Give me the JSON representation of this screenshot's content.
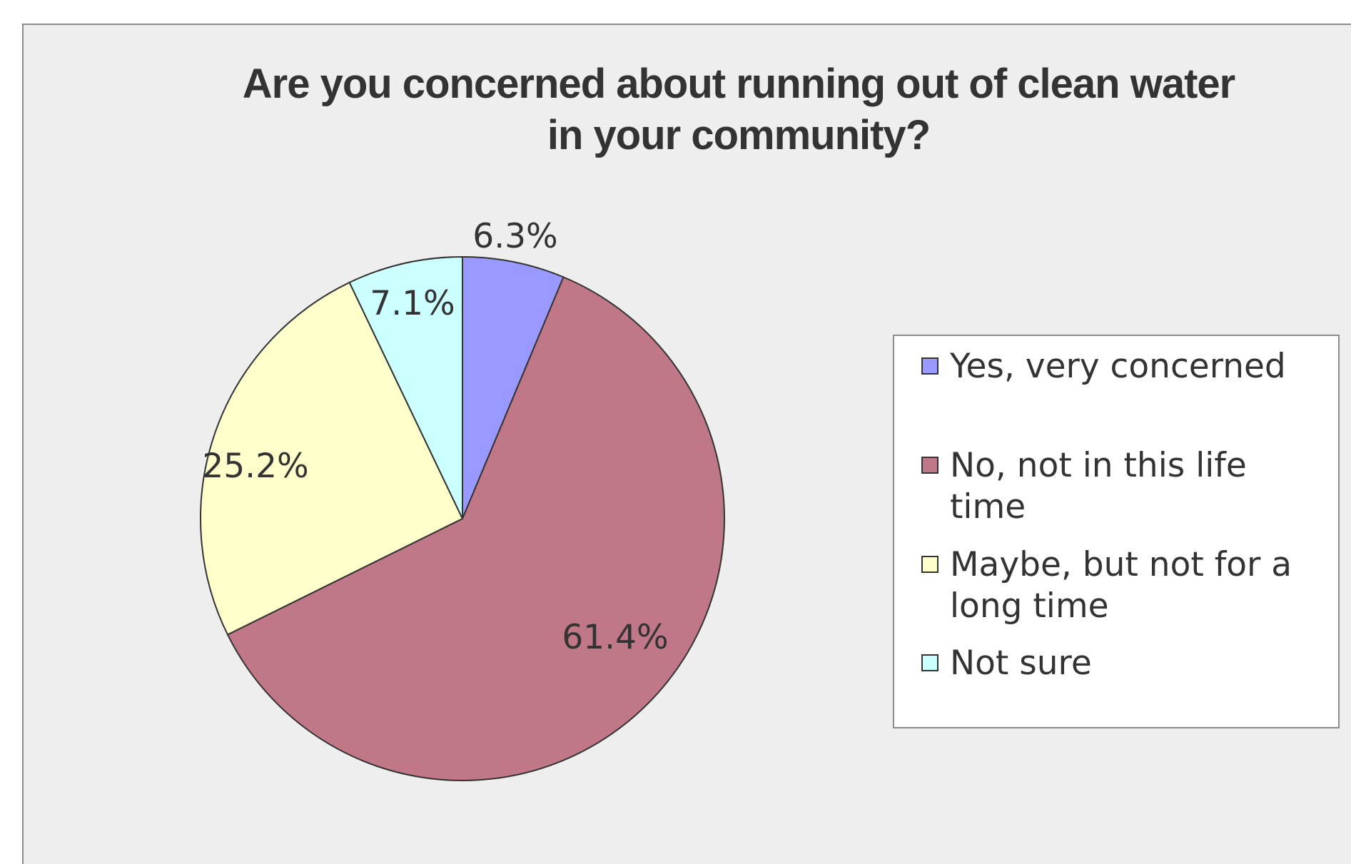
{
  "chart_data": {
    "type": "pie",
    "title_lines": [
      "Are you concerned about running out of clean water",
      "in your community?"
    ],
    "slices": [
      {
        "name": "Yes, very concerned",
        "value": 6.3,
        "label": "6.3%",
        "color": "#9999ff"
      },
      {
        "name": "No, not in this life time",
        "value": 61.4,
        "label": "61.4%",
        "color": "#c07888"
      },
      {
        "name": "Maybe, but not for a long time",
        "value": 25.2,
        "label": "25.2%",
        "color": "#ffffcc"
      },
      {
        "name": "Not sure",
        "value": 7.1,
        "label": "7.1%",
        "color": "#ccffff"
      }
    ],
    "legend_position": "right"
  },
  "colors": {
    "background": "#eeeeee",
    "outline": "#333333",
    "text": "#333333"
  }
}
